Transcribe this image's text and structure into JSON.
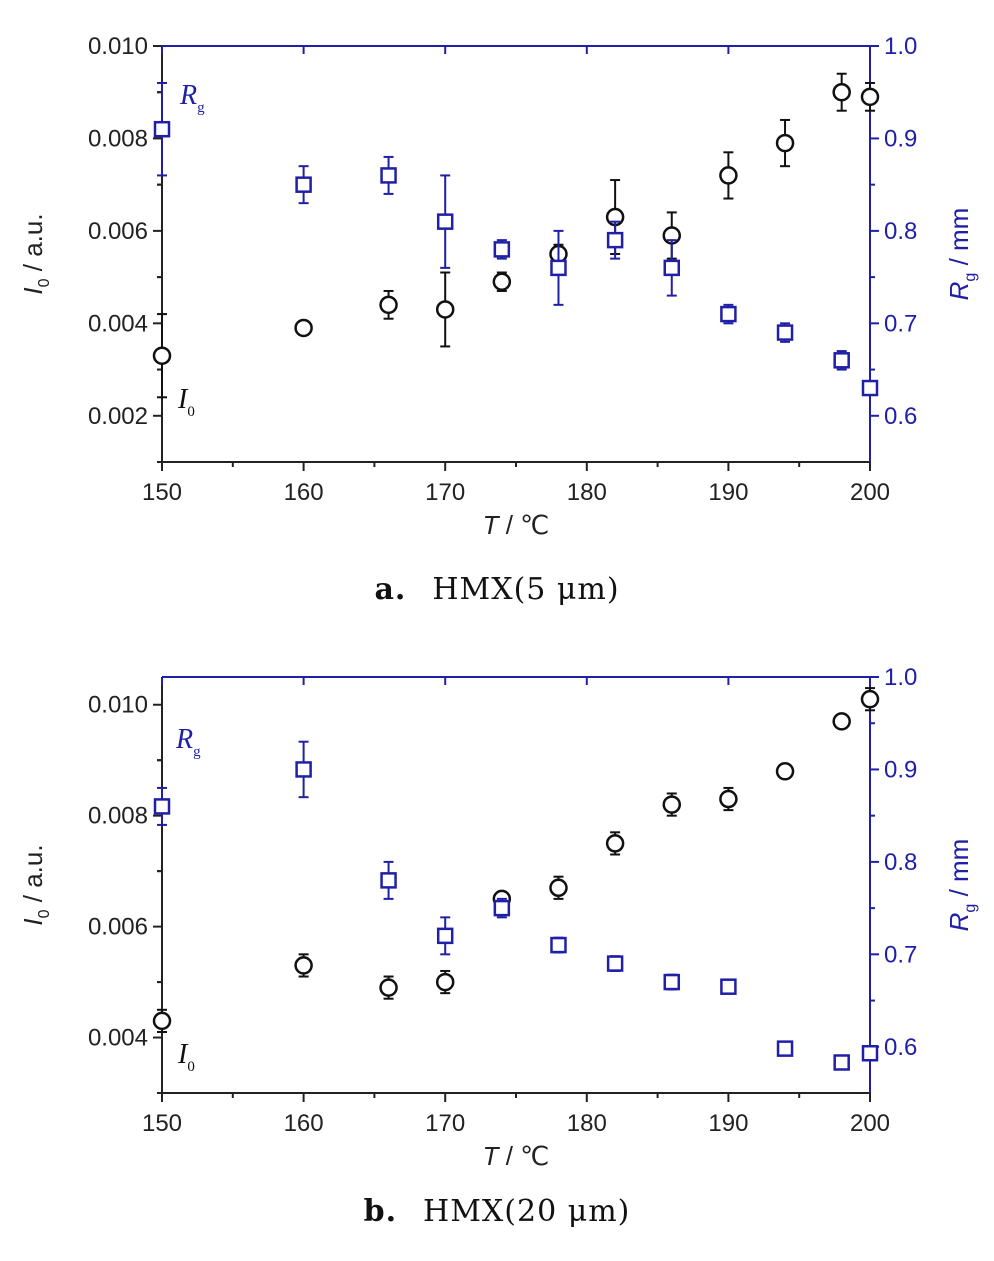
{
  "colors": {
    "left_axis": "#222222",
    "right_axis": "#1f1fa8",
    "i0_series": "#111111",
    "rg_series": "#1f1fa8"
  },
  "chart_data": [
    {
      "type": "scatter",
      "panel_label": "a.",
      "panel_caption": "HMX(5 μm)",
      "xlabel_var": "T",
      "xlabel_unit": " / ℃",
      "ylabel_left_var": "I",
      "ylabel_left_sub": "0",
      "ylabel_left_unit": " / a.u.",
      "ylabel_right_var": "R",
      "ylabel_right_sub": "g",
      "ylabel_right_unit": " / mm",
      "xlim": [
        150,
        200
      ],
      "ylim_left": [
        0.001,
        0.01
      ],
      "ylim_right": [
        0.55,
        1.0
      ],
      "xticks": [
        "150",
        "160",
        "170",
        "180",
        "190",
        "200"
      ],
      "yticks_left": [
        "0.002",
        "0.004",
        "0.006",
        "0.008",
        "0.010"
      ],
      "yticks_right": [
        "0.6",
        "0.7",
        "0.8",
        "0.9",
        "1.0"
      ],
      "series": [
        {
          "name": "I0",
          "label_var": "I",
          "label_sub": "0",
          "axis": "left",
          "marker": "circle",
          "x": [
            150,
            160,
            166,
            170,
            174,
            178,
            182,
            186,
            190,
            194,
            198,
            200
          ],
          "y": [
            0.0033,
            0.0039,
            0.0044,
            0.0043,
            0.0049,
            0.0055,
            0.0063,
            0.0059,
            0.0072,
            0.0079,
            0.009,
            0.0089
          ],
          "err": [
            0.0009,
            0.00015,
            0.0003,
            0.0008,
            0.0002,
            0.0002,
            0.0008,
            0.0005,
            0.0005,
            0.0005,
            0.0004,
            0.0003
          ]
        },
        {
          "name": "Rg",
          "label_var": "R",
          "label_sub": "g",
          "axis": "right",
          "marker": "square",
          "x": [
            150,
            160,
            166,
            170,
            174,
            178,
            182,
            186,
            190,
            194,
            198,
            200
          ],
          "y": [
            0.91,
            0.85,
            0.86,
            0.81,
            0.78,
            0.76,
            0.79,
            0.76,
            0.71,
            0.69,
            0.66,
            0.63
          ],
          "err": [
            0.05,
            0.02,
            0.02,
            0.05,
            0.01,
            0.04,
            0.02,
            0.03,
            0.01,
            0.01,
            0.01,
            0.005
          ]
        }
      ]
    },
    {
      "type": "scatter",
      "panel_label": "b.",
      "panel_caption": "HMX(20 μm)",
      "xlabel_var": "T",
      "xlabel_unit": " / ℃",
      "ylabel_left_var": "I",
      "ylabel_left_sub": "0",
      "ylabel_left_unit": " / a.u.",
      "ylabel_right_var": "R",
      "ylabel_right_sub": "g",
      "ylabel_right_unit": " / mm",
      "xlim": [
        150,
        200
      ],
      "ylim_left": [
        0.003,
        0.0105
      ],
      "ylim_right": [
        0.55,
        1.0
      ],
      "xticks": [
        "150",
        "160",
        "170",
        "180",
        "190",
        "200"
      ],
      "yticks_left": [
        "0.004",
        "0.006",
        "0.008",
        "0.010"
      ],
      "yticks_right": [
        "0.6",
        "0.7",
        "0.8",
        "0.9",
        "1.0"
      ],
      "series": [
        {
          "name": "I0",
          "label_var": "I",
          "label_sub": "0",
          "axis": "left",
          "marker": "circle",
          "x": [
            150,
            160,
            166,
            170,
            174,
            178,
            182,
            186,
            190,
            194,
            198,
            200
          ],
          "y": [
            0.0043,
            0.0053,
            0.0049,
            0.005,
            0.0065,
            0.0067,
            0.0075,
            0.0082,
            0.0083,
            0.0088,
            0.0097,
            0.0101
          ],
          "err": [
            0.0002,
            0.0002,
            0.0002,
            0.0002,
            0.00012,
            0.0002,
            0.0002,
            0.0002,
            0.0002,
            0.0001,
            0.0001,
            0.0002
          ]
        },
        {
          "name": "Rg",
          "label_var": "R",
          "label_sub": "g",
          "axis": "right",
          "marker": "square",
          "x": [
            150,
            160,
            166,
            170,
            174,
            178,
            182,
            186,
            190,
            194,
            198,
            200
          ],
          "y": [
            0.86,
            0.9,
            0.78,
            0.72,
            0.75,
            0.71,
            0.69,
            0.67,
            0.665,
            0.598,
            0.583,
            0.593
          ],
          "err": [
            0.02,
            0.03,
            0.02,
            0.02,
            0.01,
            0.008,
            0.008,
            0.008,
            0.004,
            0.004,
            0.004,
            0.004
          ]
        }
      ]
    }
  ]
}
